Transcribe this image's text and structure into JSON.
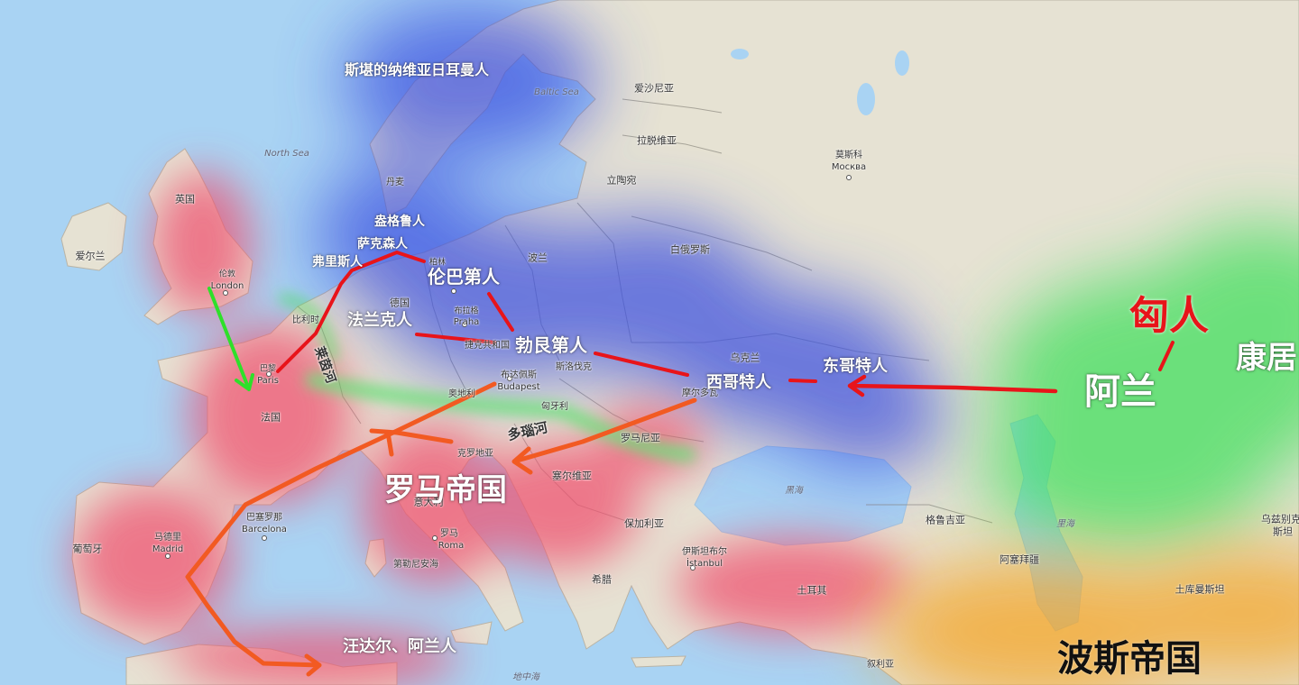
{
  "base_labels": {
    "uk": "英国",
    "london_cn": "伦敦",
    "london": "London",
    "ireland": "爱尔兰",
    "france": "法国",
    "paris_cn": "巴黎",
    "paris": "Paris",
    "belgium": "比利时",
    "germany": "德国",
    "berlin": "柏林",
    "denmark": "丹麦",
    "poland": "波兰",
    "prague_cn": "布拉格",
    "prague": "Praha",
    "czech": "捷克共和国",
    "slovakia": "斯洛伐克",
    "budapest_cn": "布达佩斯",
    "budapest": "Budapest",
    "hungary": "匈牙利",
    "austria": "奥地利",
    "croatia": "克罗地亚",
    "serbia": "塞尔维亚",
    "romania": "罗马尼亚",
    "bulgaria": "保加利亚",
    "greece": "希腊",
    "italy": "意大利",
    "rome_cn": "罗马",
    "rome": "Roma",
    "spain_madrid_cn": "马德里",
    "madrid": "Madrid",
    "portugal": "葡萄牙",
    "barcelona_cn": "巴塞罗那",
    "barcelona": "Barcelona",
    "istanbul_cn": "伊斯坦布尔",
    "istanbul": "İstanbul",
    "turkey": "土耳其",
    "estonia": "爱沙尼亚",
    "latvia": "拉脱维亚",
    "lithuania": "立陶宛",
    "belarus": "白俄罗斯",
    "ukraine": "乌克兰",
    "moldova": "摩尔多瓦",
    "moscow_cn": "莫斯科",
    "moscow": "Москва",
    "georgia": "格鲁吉亚",
    "azerbaijan": "阿塞拜疆",
    "turkmenistan": "土库曼斯坦",
    "uzbek1": "乌兹别克",
    "uzbek2": "斯坦",
    "syria": "叙利亚",
    "tyrrhenian": "第勒尼安海"
  },
  "seas": {
    "north_sea": "North Sea",
    "baltic_sea": "Baltic Sea",
    "black_sea": "黑海",
    "caspian": "里海",
    "mediterranean": "地中海"
  },
  "overlay_labels": {
    "scandinavian": "斯堪的纳维亚日耳曼人",
    "burgundians": "盎格鲁人",
    "saxons": "萨克森人",
    "frisians": "弗里斯人",
    "lombards": "伦巴第人",
    "franks": "法兰克人",
    "gepids": "勃艮第人",
    "visigoths": "西哥特人",
    "ostrogoths": "东哥特人",
    "roman_empire": "罗马帝国",
    "vandals_alans": "汪达尔、阿兰人",
    "huns": "匈人",
    "alans": "阿兰",
    "kangju": "康居",
    "persian_empire": "波斯帝国",
    "rhine": "莱茵河",
    "danube": "多瑙河"
  },
  "region_colors": {
    "germanic": "#3b4fe0",
    "roman": "#f0506e",
    "steppe": "#3ee05a",
    "persian": "#f5a21e"
  },
  "arrow_colors": {
    "invasion": "#e8141a",
    "west_route": "#f25a22",
    "britain": "#2ee02a"
  }
}
